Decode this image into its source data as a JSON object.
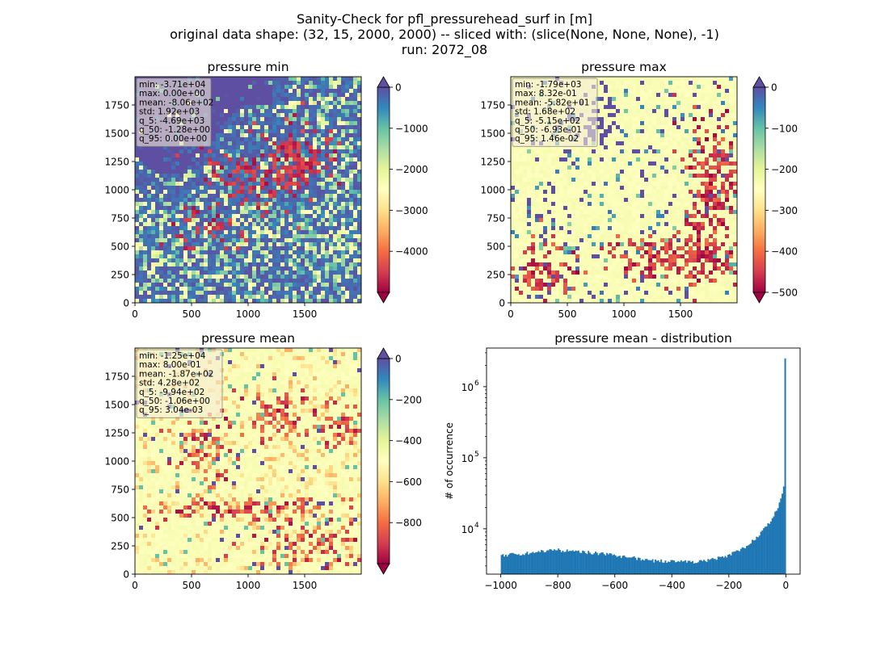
{
  "suptitle": {
    "line1": "Sanity-Check for pfl_pressurehead_surf in [m]",
    "line2": "original data shape: (32, 15, 2000, 2000) -- sliced with: (slice(None, None, None), -1)",
    "line3": "run: 2072_08"
  },
  "colors": {
    "spectral": [
      "#9e0142",
      "#d53e4f",
      "#f46d43",
      "#fdae61",
      "#fee08b",
      "#ffffbf",
      "#e6f598",
      "#abdda4",
      "#66c2a5",
      "#3288bd",
      "#5e4fa2"
    ],
    "histogram_bar": "#1f77b4"
  },
  "chart_data": [
    {
      "type": "heatmap",
      "title": "pressure min",
      "xlim": [
        0,
        2000
      ],
      "ylim": [
        0,
        2000
      ],
      "xticks": [
        0,
        500,
        1000,
        1500
      ],
      "yticks": [
        0,
        250,
        500,
        750,
        1000,
        1250,
        1500,
        1750
      ],
      "colorbar": {
        "vmin": -5000,
        "vmax": 0,
        "ticks": [
          0,
          -1000,
          -2000,
          -3000,
          -4000
        ],
        "extend": "both",
        "cmap": "Spectral"
      },
      "stats": [
        "min: -3.71e+04",
        "max: 0.00e+00",
        "mean: -8.06e+02",
        "std: 1.92e+03",
        "q_5: -4.69e+03",
        "q_50: -1.28e+00",
        "q_95: 0.00e+00"
      ]
    },
    {
      "type": "heatmap",
      "title": "pressure max",
      "xlim": [
        0,
        2000
      ],
      "ylim": [
        0,
        2000
      ],
      "xticks": [
        0,
        500,
        1000,
        1500
      ],
      "yticks": [
        0,
        250,
        500,
        750,
        1000,
        1250,
        1500,
        1750
      ],
      "colorbar": {
        "vmin": -500,
        "vmax": 0,
        "ticks": [
          0,
          -100,
          -200,
          -300,
          -400,
          -500
        ],
        "extend": "both",
        "cmap": "Spectral"
      },
      "stats": [
        "min: -1.79e+03",
        "max: 8.32e-01",
        "mean: -5.82e+01",
        "std: 1.68e+02",
        "q_5: -5.15e+02",
        "q_50: -6.93e-01",
        "q_95: 1.46e-02"
      ]
    },
    {
      "type": "heatmap",
      "title": "pressure mean",
      "xlim": [
        0,
        2000
      ],
      "ylim": [
        0,
        2000
      ],
      "xticks": [
        0,
        500,
        1000,
        1500
      ],
      "yticks": [
        0,
        250,
        500,
        750,
        1000,
        1250,
        1500,
        1750
      ],
      "colorbar": {
        "vmin": -1000,
        "vmax": 0,
        "ticks": [
          0,
          -200,
          -400,
          -600,
          -800
        ],
        "extend": "both",
        "cmap": "Spectral"
      },
      "stats": [
        "min: -1.25e+04",
        "max: 8.00e-01",
        "mean: -1.87e+02",
        "std: 4.28e+02",
        "q_5: -9.94e+02",
        "q_50: -1.06e+00",
        "q_95: 3.04e-03"
      ]
    },
    {
      "type": "bar",
      "title": "pressure mean - distribution",
      "ylabel": "# of occurrence",
      "yscale": "log",
      "xlim": [
        -1050,
        50
      ],
      "ylim": [
        2300,
        3500000
      ],
      "xticks": [
        -1000,
        -800,
        -600,
        -400,
        -200,
        0
      ],
      "yticks": [
        10000,
        100000,
        1000000
      ],
      "ytick_labels": [
        {
          "base": "10",
          "exp": "4"
        },
        {
          "base": "10",
          "exp": "5"
        },
        {
          "base": "10",
          "exp": "6"
        }
      ],
      "bin_width": 5,
      "profile": [
        [
          -1000,
          4100
        ],
        [
          -960,
          4400
        ],
        [
          -900,
          4600
        ],
        [
          -850,
          4850
        ],
        [
          -800,
          5000
        ],
        [
          -750,
          4850
        ],
        [
          -700,
          4650
        ],
        [
          -650,
          4500
        ],
        [
          -600,
          4200
        ],
        [
          -550,
          3950
        ],
        [
          -500,
          3700
        ],
        [
          -450,
          3500
        ],
        [
          -400,
          3500
        ],
        [
          -350,
          3400
        ],
        [
          -300,
          3500
        ],
        [
          -250,
          3750
        ],
        [
          -200,
          4250
        ],
        [
          -160,
          5000
        ],
        [
          -120,
          6500
        ],
        [
          -90,
          8500
        ],
        [
          -60,
          12000
        ],
        [
          -40,
          16000
        ],
        [
          -25,
          21000
        ],
        [
          -15,
          28000
        ],
        [
          -8,
          40000
        ],
        [
          -5,
          52000
        ],
        [
          0,
          2500000
        ]
      ]
    }
  ]
}
